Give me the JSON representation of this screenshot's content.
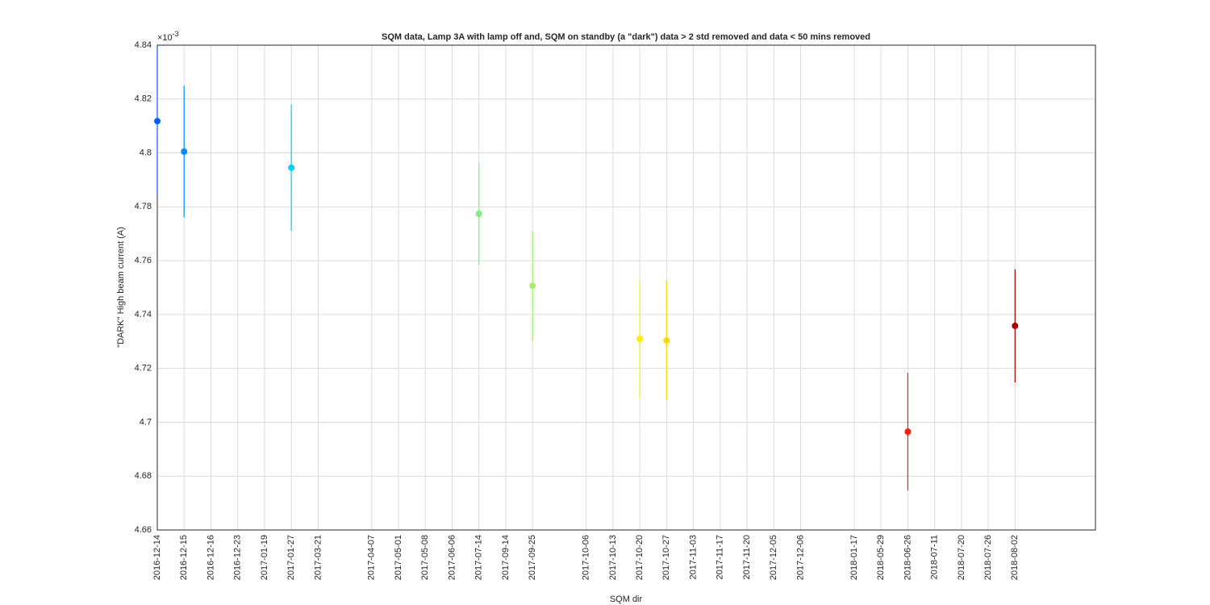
{
  "chart_data": {
    "type": "errorbar",
    "title": "SQM data, Lamp 3A with lamp off and, SQM on standby (a \"dark\") data > 2 std removed and data < 50 mins removed",
    "x_label": "SQM dir",
    "y_label": "\"DARK\" High beam current (A)",
    "y_multiplier": {
      "base": "×10",
      "exponent": "-3"
    },
    "x": [
      1,
      2,
      6,
      13,
      15,
      19,
      20,
      29,
      33
    ],
    "values": [
      4.8118,
      4.8005,
      4.7945,
      4.7774,
      4.7507,
      4.731,
      4.7304,
      4.6965,
      4.7358
    ],
    "errors": [
      0.0275,
      0.0244,
      0.0234,
      0.019,
      0.0204,
      0.0219,
      0.0222,
      0.0219,
      0.021
    ],
    "colors": [
      "#0060ff",
      "#0090ff",
      "#00d0ff",
      "#80f080",
      "#a8f060",
      "#ffee00",
      "#ffd800",
      "#ff2000",
      "#b00000"
    ],
    "xlim": [
      1,
      36
    ],
    "xticks": [
      {
        "value": 1,
        "label": "2016-12-14"
      },
      {
        "value": 2,
        "label": "2016-12-15"
      },
      {
        "value": 3,
        "label": "2016-12-16"
      },
      {
        "value": 4,
        "label": "2016-12-23"
      },
      {
        "value": 5,
        "label": "2017-01-19"
      },
      {
        "value": 6,
        "label": "2017-01-27"
      },
      {
        "value": 7,
        "label": "2017-03-21"
      },
      {
        "value": 9,
        "label": "2017-04-07"
      },
      {
        "value": 10,
        "label": "2017-05-01"
      },
      {
        "value": 11,
        "label": "2017-05-08"
      },
      {
        "value": 12,
        "label": "2017-06-06"
      },
      {
        "value": 13,
        "label": "2017-07-14"
      },
      {
        "value": 14,
        "label": "2017-09-14"
      },
      {
        "value": 15,
        "label": "2017-09-25"
      },
      {
        "value": 17,
        "label": "2017-10-06"
      },
      {
        "value": 18,
        "label": "2017-10-13"
      },
      {
        "value": 19,
        "label": "2017-10-20"
      },
      {
        "value": 20,
        "label": "2017-10-27"
      },
      {
        "value": 21,
        "label": "2017-11-03"
      },
      {
        "value": 22,
        "label": "2017-11-17"
      },
      {
        "value": 23,
        "label": "2017-11-20"
      },
      {
        "value": 24,
        "label": "2017-12-05"
      },
      {
        "value": 25,
        "label": "2017-12-06"
      },
      {
        "value": 27,
        "label": "2018-01-17"
      },
      {
        "value": 28,
        "label": "2018-05-29"
      },
      {
        "value": 29,
        "label": "2018-06-26"
      },
      {
        "value": 30,
        "label": "2018-07-11"
      },
      {
        "value": 31,
        "label": "2018-07-20"
      },
      {
        "value": 32,
        "label": "2018-07-26"
      },
      {
        "value": 33,
        "label": "2018-08-02"
      }
    ],
    "ylim": [
      4.66,
      4.84
    ],
    "yticks": [
      4.66,
      4.68,
      4.7,
      4.72,
      4.74,
      4.76,
      4.78,
      4.8,
      4.82,
      4.84
    ],
    "grid": true
  }
}
